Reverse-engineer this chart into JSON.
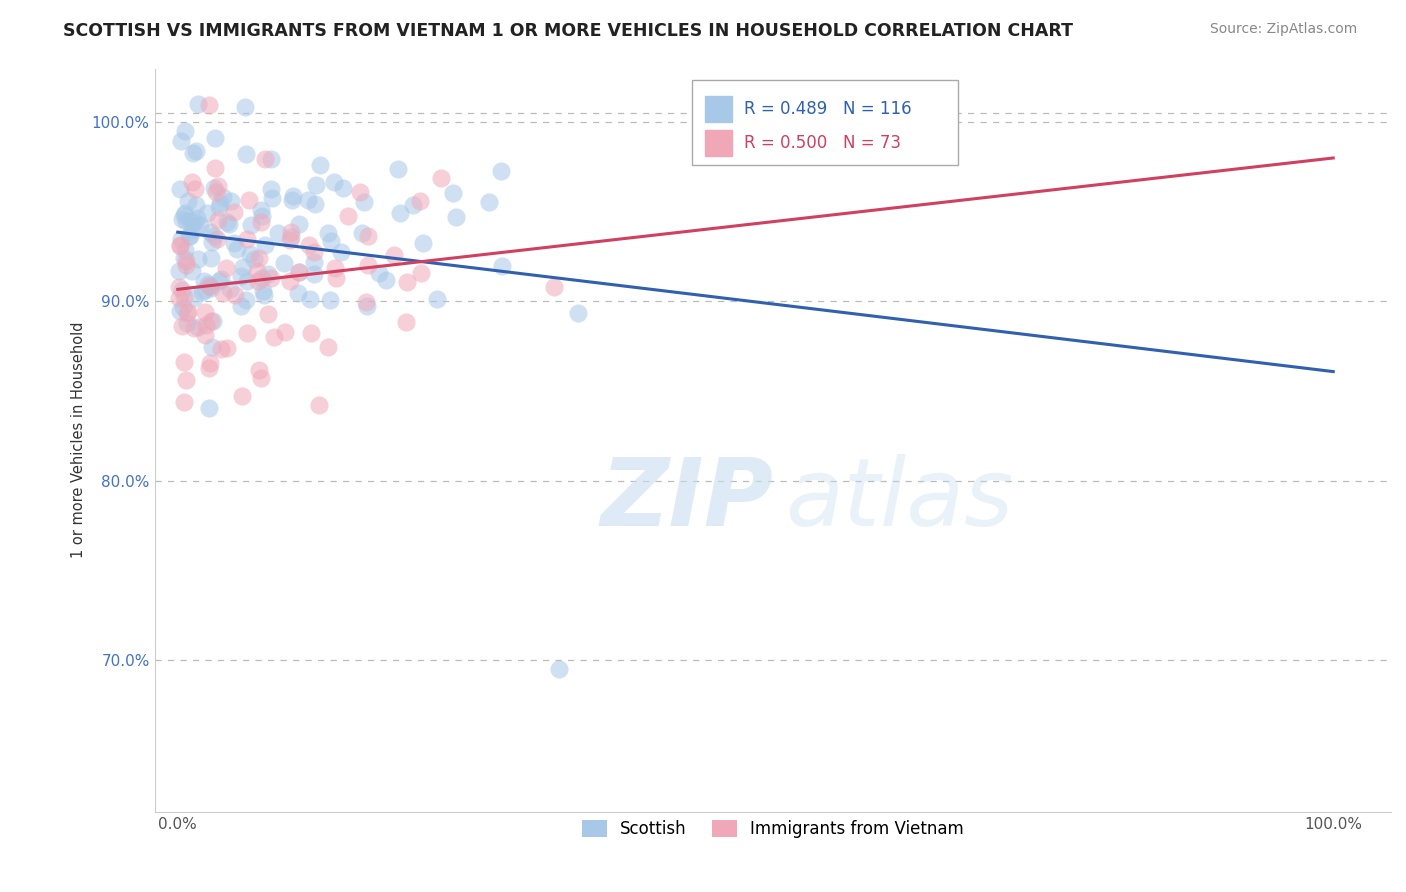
{
  "title": "SCOTTISH VS IMMIGRANTS FROM VIETNAM 1 OR MORE VEHICLES IN HOUSEHOLD CORRELATION CHART",
  "source": "Source: ZipAtlas.com",
  "ylabel": "1 or more Vehicles in Household",
  "r_scottish": 0.489,
  "n_scottish": 116,
  "r_vietnam": 0.5,
  "n_vietnam": 73,
  "color_scottish": "#a8c8e8",
  "color_vietnam": "#f0a8b8",
  "line_color_scottish": "#3060b0",
  "line_color_vietnam": "#d04060",
  "legend_label_scottish": "Scottish",
  "legend_label_vietnam": "Immigrants from Vietnam",
  "watermark_zip": "ZIP",
  "watermark_atlas": "atlas",
  "xlim": [
    -0.02,
    1.05
  ],
  "ylim": [
    0.615,
    1.03
  ],
  "y_ticks": [
    0.7,
    0.8,
    0.9,
    1.0
  ],
  "y_tick_labels": [
    "70.0%",
    "80.0%",
    "90.0%",
    "100.0%"
  ],
  "x_ticks": [
    0.0,
    0.25,
    0.5,
    0.75,
    1.0
  ],
  "x_tick_labels": [
    "0.0%",
    "",
    "",
    "",
    "100.0%"
  ]
}
